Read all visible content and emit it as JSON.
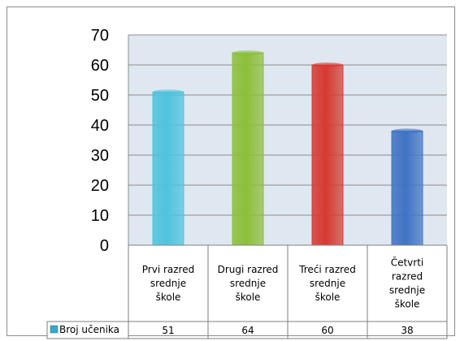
{
  "chart_data": {
    "type": "bar",
    "categories": [
      [
        "Prvi razred",
        "srednje",
        "škole"
      ],
      [
        "Drugi razred",
        "srednje",
        "škole"
      ],
      [
        "Treći razred",
        "srednje",
        "škole"
      ],
      [
        "Četvrti",
        "razred",
        "srednje",
        "škole"
      ]
    ],
    "series": [
      {
        "name": "Broj učenika",
        "values": [
          51,
          64,
          60,
          38
        ]
      }
    ],
    "bar_colors": [
      "#4fc3dd",
      "#8cbf3a",
      "#d63a32",
      "#3f73c4"
    ],
    "legend_color": "#3aa8cc",
    "ylim": [
      0,
      70
    ],
    "yticks": [
      0,
      10,
      20,
      30,
      40,
      50,
      60,
      70
    ],
    "grid": true,
    "plot_background": "#dfe8f0",
    "legend": "data-table",
    "data_table_values": [
      "51",
      "64",
      "60",
      "38"
    ]
  }
}
